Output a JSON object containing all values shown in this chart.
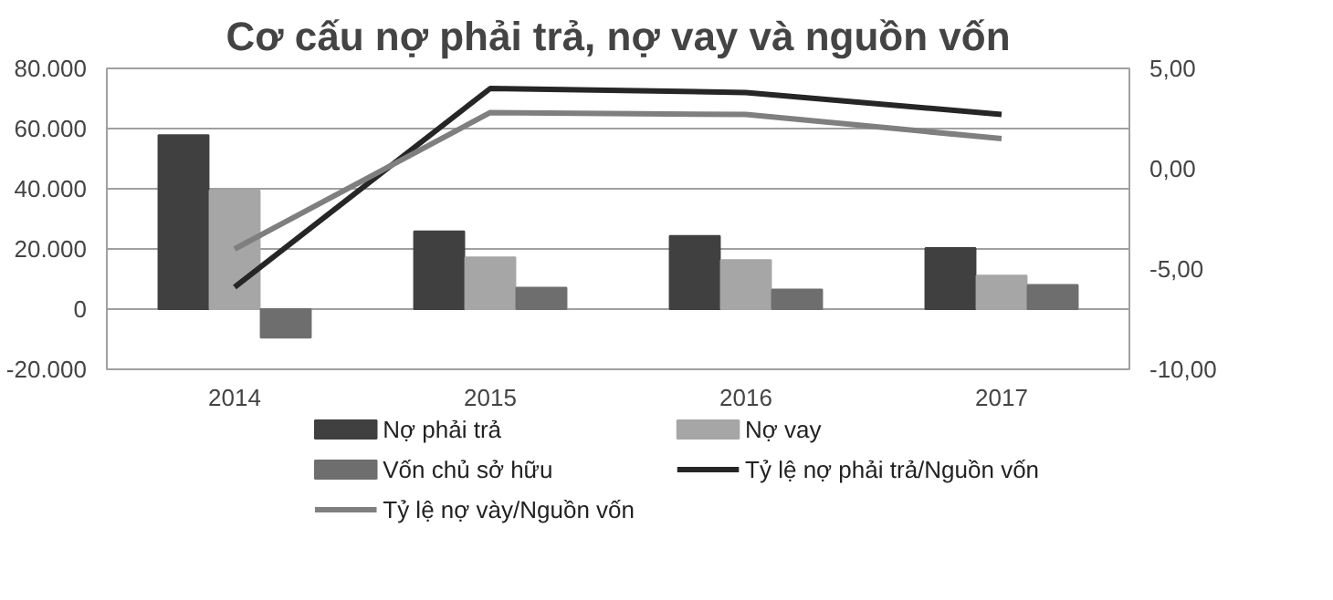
{
  "chart_data": {
    "type": "bar",
    "title": "Cơ cấu nợ phải trả, nợ vay và nguồn vốn",
    "categories": [
      "2014",
      "2015",
      "2016",
      "2017"
    ],
    "series": [
      {
        "name": "Nợ phải trả",
        "color": "#404040",
        "values": [
          57800,
          25800,
          24300,
          20300
        ]
      },
      {
        "name": "Nợ vay",
        "color": "#a6a6a6",
        "values": [
          39400,
          17200,
          16300,
          11100
        ]
      },
      {
        "name": "Vốn chủ sở hữu",
        "color": "#6e6e6e",
        "values": [
          -9500,
          7100,
          6500,
          8000
        ]
      },
      {
        "name": "Tỷ lệ nợ phải trả/Nguồn vốn",
        "type": "line",
        "axis": "y2",
        "color": "#262626",
        "values": [
          -5.9,
          4.0,
          3.8,
          2.7
        ]
      },
      {
        "name": "Tỷ lệ nợ vày/Nguồn vốn",
        "type": "line",
        "axis": "y2",
        "color": "#7f7f7f",
        "values": [
          -4.0,
          2.8,
          2.7,
          1.5
        ]
      }
    ],
    "ylim": [
      -20000,
      80000
    ],
    "yticks": [
      {
        "value": -20000,
        "label": "-20.000"
      },
      {
        "value": 0,
        "label": "0"
      },
      {
        "value": 20000,
        "label": "20.000"
      },
      {
        "value": 40000,
        "label": "40.000"
      },
      {
        "value": 60000,
        "label": "60.000"
      },
      {
        "value": 80000,
        "label": "80.000"
      }
    ],
    "y2lim": [
      -10,
      5
    ],
    "y2ticks": [
      {
        "value": -10,
        "label": "-10,00"
      },
      {
        "value": -5,
        "label": "-5,00"
      },
      {
        "value": 0,
        "label": "0,00"
      },
      {
        "value": 5,
        "label": "5,00"
      }
    ],
    "grid": "y",
    "legend": "bottom",
    "line_style": "solid",
    "marker": "none"
  }
}
